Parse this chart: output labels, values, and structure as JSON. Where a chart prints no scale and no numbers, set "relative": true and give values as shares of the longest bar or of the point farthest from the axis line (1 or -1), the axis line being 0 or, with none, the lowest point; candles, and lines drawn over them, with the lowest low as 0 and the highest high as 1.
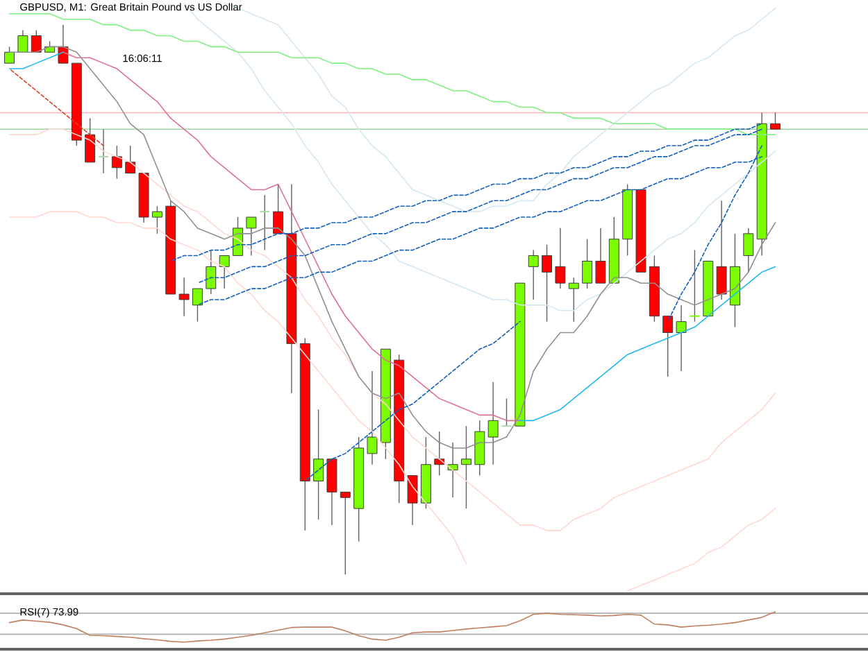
{
  "chart_data": [
    {
      "type": "candlestick",
      "title": "GBPUSD, M1: Great Britain Pound vs US Dollar",
      "annotations": [
        "16:06:11"
      ],
      "relative": true,
      "categories": [
        null,
        null,
        null,
        null,
        null,
        null,
        null,
        null,
        null,
        null,
        null,
        null,
        null,
        null,
        null,
        null,
        null,
        null,
        null,
        null,
        null,
        null,
        null,
        null,
        null,
        null,
        null,
        null,
        null,
        null,
        null,
        null,
        null,
        null,
        null,
        null,
        null,
        null,
        null,
        null,
        null,
        null,
        null,
        null,
        null,
        null,
        null,
        null,
        null,
        null,
        null,
        null,
        null,
        null,
        null,
        null,
        null,
        null
      ],
      "ohlc": [
        [
          0.93,
          0.96,
          0.93,
          0.95
        ],
        [
          0.95,
          0.99,
          0.95,
          0.98
        ],
        [
          0.98,
          0.99,
          0.95,
          0.95
        ],
        [
          0.95,
          0.97,
          0.95,
          0.96
        ],
        [
          0.96,
          1.0,
          0.93,
          0.93
        ],
        [
          0.93,
          0.93,
          0.78,
          0.79
        ],
        [
          0.8,
          0.83,
          0.75,
          0.75
        ],
        [
          0.76,
          0.81,
          0.73,
          0.76
        ],
        [
          0.76,
          0.78,
          0.72,
          0.74
        ],
        [
          0.75,
          0.78,
          0.73,
          0.73
        ],
        [
          0.73,
          0.73,
          0.64,
          0.65
        ],
        [
          0.65,
          0.67,
          0.62,
          0.66
        ],
        [
          0.67,
          0.68,
          0.51,
          0.51
        ],
        [
          0.51,
          0.54,
          0.47,
          0.5
        ],
        [
          0.49,
          0.52,
          0.46,
          0.52
        ],
        [
          0.52,
          0.59,
          0.51,
          0.56
        ],
        [
          0.56,
          0.58,
          0.52,
          0.58
        ],
        [
          0.58,
          0.65,
          0.58,
          0.63
        ],
        [
          0.63,
          0.65,
          0.58,
          0.65
        ],
        [
          0.66,
          0.69,
          0.59,
          0.66
        ],
        [
          0.66,
          0.71,
          0.62,
          0.62
        ],
        [
          0.62,
          0.71,
          0.33,
          0.42
        ],
        [
          0.42,
          0.43,
          0.08,
          0.17
        ],
        [
          0.17,
          0.3,
          0.1,
          0.21
        ],
        [
          0.21,
          0.21,
          0.09,
          0.15
        ],
        [
          0.15,
          0.15,
          0.0,
          0.14
        ],
        [
          0.12,
          0.25,
          0.06,
          0.23
        ],
        [
          0.22,
          0.37,
          0.2,
          0.25
        ],
        [
          0.24,
          0.41,
          0.21,
          0.41
        ],
        [
          0.39,
          0.4,
          0.13,
          0.17
        ],
        [
          0.18,
          0.18,
          0.09,
          0.13
        ],
        [
          0.13,
          0.25,
          0.12,
          0.2
        ],
        [
          0.21,
          0.26,
          0.18,
          0.2
        ],
        [
          0.19,
          0.24,
          0.14,
          0.2
        ],
        [
          0.2,
          0.27,
          0.12,
          0.21
        ],
        [
          0.2,
          0.28,
          0.18,
          0.26
        ],
        [
          0.25,
          0.35,
          0.2,
          0.28
        ],
        [
          0.27,
          0.32,
          0.27,
          0.27
        ],
        [
          0.27,
          0.53,
          0.27,
          0.53
        ],
        [
          0.56,
          0.59,
          0.5,
          0.58
        ],
        [
          0.58,
          0.6,
          0.46,
          0.55
        ],
        [
          0.56,
          0.63,
          0.52,
          0.53
        ],
        [
          0.52,
          0.54,
          0.46,
          0.53
        ],
        [
          0.53,
          0.61,
          0.52,
          0.57
        ],
        [
          0.57,
          0.63,
          0.53,
          0.53
        ],
        [
          0.53,
          0.65,
          0.53,
          0.61
        ],
        [
          0.61,
          0.71,
          0.58,
          0.7
        ],
        [
          0.7,
          0.7,
          0.55,
          0.55
        ],
        [
          0.56,
          0.58,
          0.46,
          0.47
        ],
        [
          0.47,
          0.47,
          0.36,
          0.44
        ],
        [
          0.44,
          0.49,
          0.37,
          0.46
        ],
        [
          0.47,
          0.59,
          0.46,
          0.47
        ],
        [
          0.47,
          0.57,
          0.47,
          0.57
        ],
        [
          0.56,
          0.68,
          0.5,
          0.51
        ],
        [
          0.49,
          0.62,
          0.45,
          0.56
        ],
        [
          0.58,
          0.63,
          0.55,
          0.62
        ],
        [
          0.61,
          0.84,
          0.58,
          0.82
        ],
        [
          0.82,
          0.84,
          0.81,
          0.81
        ]
      ],
      "colors": [
        "#7cfc00",
        "#7cfc00",
        "#ff0000",
        "#7cfc00",
        "#ff0000",
        "#ff0000",
        "#ff0000",
        "#a8d8a8",
        "#ff0000",
        "#ff0000",
        "#ff0000",
        "#7cfc00",
        "#ff0000",
        "#ff0000",
        "#7cfc00",
        "#7cfc00",
        "#7cfc00",
        "#7cfc00",
        "#7cfc00",
        "#a8d8a8",
        "#ff0000",
        "#ff0000",
        "#ff0000",
        "#7cfc00",
        "#ff0000",
        "#ff0000",
        "#7cfc00",
        "#7cfc00",
        "#7cfc00",
        "#ff0000",
        "#ff0000",
        "#7cfc00",
        "#ff0000",
        "#7cfc00",
        "#7cfc00",
        "#7cfc00",
        "#7cfc00",
        "#a8d8a8",
        "#7cfc00",
        "#7cfc00",
        "#ff0000",
        "#ff0000",
        "#7cfc00",
        "#7cfc00",
        "#ff0000",
        "#7cfc00",
        "#7cfc00",
        "#ff0000",
        "#ff0000",
        "#ff0000",
        "#7cfc00",
        "#7cfc00",
        "#7cfc00",
        "#ff0000",
        "#7cfc00",
        "#7cfc00",
        "#7cfc00",
        "#ff0000"
      ],
      "ref_lines": [
        {
          "axis": "y",
          "value": 0.84,
          "color": "#ffb0b0"
        },
        {
          "axis": "y",
          "value": 0.81,
          "color": "#a0d8a0"
        }
      ],
      "series": [
        {
          "type": "line",
          "color": "#d4e8f2",
          "values": [
            null,
            null,
            null,
            null,
            null,
            null,
            null,
            null,
            null,
            null,
            null,
            null,
            null,
            null,
            null,
            null,
            1.04,
            1.03,
            1.02,
            1.01,
            1.0,
            0.97,
            0.94,
            0.91,
            0.87,
            0.85,
            0.81,
            0.78,
            0.76,
            0.73,
            0.7,
            0.69,
            0.68,
            0.67,
            0.66,
            0.66,
            0.67,
            0.67,
            0.68,
            0.68,
            0.71,
            0.73,
            0.76,
            0.78,
            0.8,
            0.82,
            0.84,
            0.86,
            0.88,
            0.89,
            0.91,
            0.93,
            0.94,
            0.96,
            0.98,
            0.99,
            1.01,
            1.03
          ]
        },
        {
          "type": "line",
          "color": "#d4e8f2",
          "values": [
            null,
            null,
            null,
            null,
            null,
            null,
            null,
            null,
            null,
            null,
            null,
            null,
            null,
            1.04,
            1.01,
            0.99,
            0.97,
            0.95,
            0.92,
            0.88,
            0.85,
            0.82,
            0.78,
            0.75,
            0.71,
            0.68,
            0.65,
            0.62,
            0.6,
            0.57,
            0.56,
            0.55,
            0.54,
            0.53,
            0.52,
            0.51,
            0.5,
            0.5,
            0.49,
            0.49,
            0.49,
            0.48,
            0.48,
            0.5,
            0.51,
            0.53,
            0.55,
            0.57,
            0.59,
            0.61,
            0.62,
            0.64,
            0.67,
            0.69,
            0.71,
            0.73,
            0.75,
            0.77
          ]
        },
        {
          "type": "line",
          "color": "#ffd8d0",
          "values": [
            0.8,
            0.8,
            0.8,
            0.81,
            0.81,
            0.8,
            0.79,
            0.77,
            0.76,
            0.75,
            0.73,
            0.71,
            0.69,
            0.67,
            0.66,
            0.64,
            0.62,
            0.61,
            0.59,
            0.58,
            0.56,
            0.54,
            0.5,
            0.47,
            0.43,
            0.4,
            0.36,
            0.33,
            0.31,
            0.28,
            0.25,
            0.23,
            0.21,
            0.19,
            0.17,
            0.15,
            0.13,
            0.11,
            0.09,
            0.09,
            0.08,
            0.08,
            0.1,
            0.11,
            0.12,
            0.14,
            0.15,
            0.16,
            0.17,
            0.18,
            0.19,
            0.2,
            0.21,
            0.24,
            0.26,
            0.28,
            0.3,
            0.33
          ]
        },
        {
          "type": "line",
          "color": "#ffd8d0",
          "values": [
            0.65,
            0.65,
            0.65,
            0.66,
            0.66,
            0.66,
            0.65,
            0.65,
            0.64,
            0.64,
            0.63,
            0.63,
            0.61,
            0.6,
            0.59,
            0.57,
            0.56,
            0.53,
            0.51,
            0.48,
            0.46,
            0.43,
            0.4,
            0.37,
            0.34,
            0.31,
            0.28,
            0.26,
            0.23,
            0.2,
            0.16,
            0.13,
            0.1,
            0.07,
            0.02,
            null,
            null,
            null,
            null,
            null,
            null,
            null,
            null,
            null,
            null,
            null,
            null,
            null,
            null,
            null,
            null,
            null,
            null,
            null,
            null,
            null,
            null,
            null
          ]
        },
        {
          "type": "line",
          "color": "#ffd8d0",
          "values": [
            null,
            null,
            null,
            null,
            null,
            null,
            null,
            null,
            null,
            null,
            null,
            null,
            null,
            null,
            null,
            null,
            null,
            null,
            null,
            null,
            null,
            null,
            null,
            null,
            null,
            null,
            null,
            null,
            null,
            null,
            null,
            null,
            null,
            null,
            null,
            null,
            null,
            null,
            null,
            null,
            null,
            null,
            null,
            null,
            null,
            null,
            -0.03,
            -0.02,
            -0.01,
            0.0,
            0.01,
            0.02,
            0.04,
            0.05,
            0.07,
            0.09,
            0.1,
            0.12
          ]
        },
        {
          "type": "line",
          "color": "#80f080",
          "values": [
            1.02,
            1.02,
            1.02,
            1.02,
            1.01,
            1.01,
            1.01,
            1.0,
            1.0,
            0.99,
            0.99,
            0.98,
            0.98,
            0.97,
            0.97,
            0.96,
            0.96,
            0.95,
            0.95,
            0.95,
            0.95,
            0.94,
            0.94,
            0.94,
            0.93,
            0.93,
            0.92,
            0.92,
            0.91,
            0.91,
            0.9,
            0.9,
            0.89,
            0.88,
            0.88,
            0.87,
            0.86,
            0.86,
            0.85,
            0.85,
            0.84,
            0.84,
            0.83,
            0.83,
            0.83,
            0.82,
            0.82,
            0.82,
            0.82,
            0.81,
            0.81,
            0.81,
            0.81,
            0.81,
            0.81,
            0.8,
            0.8,
            0.8
          ]
        },
        {
          "type": "line",
          "color": "#e07090",
          "values": [
            null,
            null,
            null,
            null,
            0.95,
            0.94,
            0.94,
            0.93,
            0.92,
            0.9,
            0.88,
            0.86,
            0.83,
            0.81,
            0.79,
            0.76,
            0.74,
            0.72,
            0.7,
            0.7,
            0.71,
            0.66,
            0.61,
            0.56,
            0.51,
            0.47,
            0.44,
            0.41,
            0.39,
            0.38,
            0.36,
            0.34,
            0.32,
            0.31,
            0.3,
            0.29,
            0.29,
            0.28,
            0.28,
            null,
            null,
            null,
            null,
            null,
            null,
            null,
            null,
            null,
            null,
            null,
            null,
            null,
            null,
            null,
            null,
            null,
            null,
            null
          ]
        },
        {
          "type": "line",
          "color": "#20b8f0",
          "values": [
            0.92,
            0.92,
            0.93,
            0.94,
            0.95,
            null,
            null,
            null,
            null,
            null,
            null,
            null,
            null,
            null,
            null,
            null,
            null,
            null,
            null,
            null,
            null,
            null,
            null,
            null,
            null,
            null,
            null,
            null,
            null,
            null,
            null,
            null,
            null,
            null,
            null,
            null,
            null,
            null,
            0.28,
            0.28,
            0.29,
            0.3,
            0.32,
            0.34,
            0.36,
            0.38,
            0.4,
            0.41,
            0.42,
            0.43,
            0.44,
            0.45,
            0.47,
            0.49,
            0.51,
            0.53,
            0.55,
            0.56
          ]
        },
        {
          "type": "line",
          "color": "#909090",
          "values": [
            0.95,
            0.95,
            0.95,
            0.96,
            0.96,
            0.95,
            0.92,
            0.89,
            0.86,
            0.82,
            0.8,
            0.74,
            0.68,
            0.66,
            0.63,
            0.62,
            0.61,
            0.62,
            0.62,
            0.63,
            0.63,
            0.61,
            0.58,
            0.52,
            0.46,
            0.41,
            0.36,
            0.33,
            0.32,
            0.33,
            0.29,
            0.26,
            0.24,
            0.23,
            0.23,
            0.24,
            0.24,
            0.25,
            0.29,
            0.37,
            0.41,
            0.44,
            0.44,
            0.47,
            0.51,
            0.54,
            0.54,
            0.53,
            0.53,
            0.51,
            0.5,
            0.49,
            0.5,
            0.51,
            0.52,
            0.55,
            0.6,
            0.64
          ]
        },
        {
          "type": "line",
          "color": "#e04020",
          "line_style": "dashed",
          "values": [
            0.92,
            0.9,
            0.88,
            0.86,
            0.84,
            0.82,
            0.8,
            0.78,
            null,
            null,
            null,
            null,
            null,
            null,
            null,
            null,
            null,
            null,
            null,
            null,
            null,
            null,
            null,
            null,
            null,
            null,
            null,
            null,
            null,
            null,
            null,
            null,
            null,
            null,
            null,
            null,
            null,
            null,
            null,
            null,
            null,
            null,
            null,
            null,
            null,
            null,
            null,
            null,
            null,
            null,
            null,
            null,
            null,
            null,
            null,
            null,
            null,
            null
          ]
        },
        {
          "type": "line",
          "color": "#1060c0",
          "line_style": "dashed",
          "values": [
            null,
            null,
            null,
            null,
            null,
            null,
            null,
            null,
            null,
            null,
            null,
            null,
            0.57,
            0.58,
            0.58,
            0.59,
            0.59,
            0.6,
            0.6,
            0.61,
            0.62,
            0.62,
            0.63,
            0.63,
            0.64,
            0.64,
            0.65,
            0.65,
            0.66,
            0.67,
            0.67,
            0.68,
            0.68,
            0.69,
            0.69,
            0.7,
            0.71,
            0.71,
            0.72,
            0.72,
            0.73,
            0.73,
            0.74,
            0.74,
            0.75,
            0.76,
            0.76,
            0.77,
            0.77,
            0.78,
            0.78,
            0.79,
            0.79,
            0.8,
            0.81,
            0.81,
            0.82,
            null
          ]
        },
        {
          "type": "line",
          "color": "#1060c0",
          "line_style": "dashed",
          "values": [
            null,
            null,
            null,
            null,
            null,
            null,
            null,
            null,
            null,
            null,
            null,
            null,
            null,
            null,
            0.53,
            0.54,
            0.54,
            0.55,
            0.56,
            0.56,
            0.57,
            0.58,
            0.58,
            0.59,
            0.6,
            0.6,
            0.61,
            0.62,
            0.62,
            0.63,
            0.64,
            0.64,
            0.65,
            0.66,
            0.66,
            0.67,
            0.68,
            0.68,
            0.69,
            0.7,
            0.7,
            0.71,
            0.72,
            0.72,
            0.73,
            0.74,
            0.74,
            0.75,
            0.76,
            0.76,
            0.77,
            0.78,
            0.78,
            0.79,
            0.8,
            0.8,
            0.81,
            null
          ]
        },
        {
          "type": "line",
          "color": "#1060c0",
          "line_style": "dashed",
          "values": [
            null,
            null,
            null,
            null,
            null,
            null,
            null,
            null,
            null,
            null,
            null,
            null,
            null,
            null,
            0.49,
            0.5,
            0.5,
            0.51,
            0.52,
            0.52,
            0.53,
            0.54,
            0.54,
            0.55,
            0.55,
            0.56,
            0.57,
            0.57,
            0.58,
            0.59,
            0.59,
            0.6,
            0.61,
            0.61,
            0.62,
            0.63,
            0.63,
            0.64,
            0.65,
            0.65,
            0.66,
            0.66,
            0.67,
            0.68,
            0.68,
            0.69,
            0.7,
            0.7,
            0.71,
            0.72,
            0.72,
            0.73,
            0.74,
            0.74,
            0.75,
            0.75,
            0.76,
            null
          ]
        },
        {
          "type": "line",
          "color": "#1060c0",
          "line_style": "dashed",
          "values": [
            null,
            null,
            null,
            null,
            null,
            null,
            null,
            null,
            null,
            null,
            null,
            null,
            null,
            null,
            null,
            null,
            null,
            null,
            null,
            null,
            null,
            null,
            0.17,
            0.19,
            0.21,
            0.22,
            0.24,
            0.26,
            0.28,
            0.3,
            0.31,
            0.33,
            0.35,
            0.37,
            0.39,
            0.41,
            0.42,
            0.44,
            0.46,
            null,
            null,
            null,
            null,
            null,
            null,
            null,
            null,
            null,
            null,
            null,
            null,
            null,
            null,
            null,
            null,
            null,
            null,
            null
          ]
        },
        {
          "type": "line",
          "color": "#1060c0",
          "line_style": "dashed",
          "values": [
            null,
            null,
            null,
            null,
            null,
            null,
            null,
            null,
            null,
            null,
            null,
            null,
            null,
            null,
            null,
            null,
            null,
            null,
            null,
            null,
            null,
            null,
            null,
            null,
            null,
            null,
            null,
            null,
            null,
            null,
            null,
            null,
            null,
            null,
            null,
            null,
            null,
            null,
            null,
            null,
            null,
            null,
            null,
            null,
            null,
            null,
            null,
            null,
            null,
            0.46,
            0.51,
            0.55,
            0.6,
            0.64,
            0.69,
            0.73,
            0.78,
            null
          ]
        }
      ]
    },
    {
      "type": "line",
      "title": "RSI(7) 73.99",
      "relative": true,
      "categories": [
        null,
        null,
        null,
        null,
        null,
        null,
        null,
        null,
        null,
        null,
        null,
        null,
        null,
        null,
        null,
        null,
        null,
        null,
        null,
        null,
        null,
        null,
        null,
        null,
        null,
        null,
        null,
        null,
        null,
        null,
        null,
        null,
        null,
        null,
        null,
        null,
        null,
        null,
        null,
        null,
        null,
        null,
        null,
        null,
        null,
        null,
        null,
        null,
        null,
        null,
        null,
        null,
        null,
        null,
        null,
        null,
        null,
        null
      ],
      "ref_lines": [
        {
          "axis": "y",
          "value": 0.96,
          "color": "#b0b0b0"
        },
        {
          "axis": "y",
          "value": 0.4,
          "color": "#b0b0b0"
        }
      ],
      "series": [
        {
          "color": "#c08060",
          "values": [
            0.71,
            0.78,
            0.75,
            0.72,
            0.65,
            0.55,
            0.37,
            0.36,
            0.34,
            0.32,
            0.28,
            0.25,
            0.21,
            0.19,
            0.22,
            0.24,
            0.27,
            0.32,
            0.37,
            0.44,
            0.51,
            0.58,
            0.59,
            0.59,
            0.59,
            0.49,
            0.36,
            0.27,
            0.24,
            0.32,
            0.44,
            0.46,
            0.46,
            0.5,
            0.54,
            0.57,
            0.6,
            0.63,
            0.76,
            0.93,
            0.96,
            0.93,
            0.92,
            0.91,
            0.89,
            0.9,
            0.93,
            0.91,
            0.67,
            0.65,
            0.59,
            0.62,
            0.64,
            0.67,
            0.71,
            0.78,
            0.85,
            1.0
          ]
        }
      ]
    }
  ]
}
